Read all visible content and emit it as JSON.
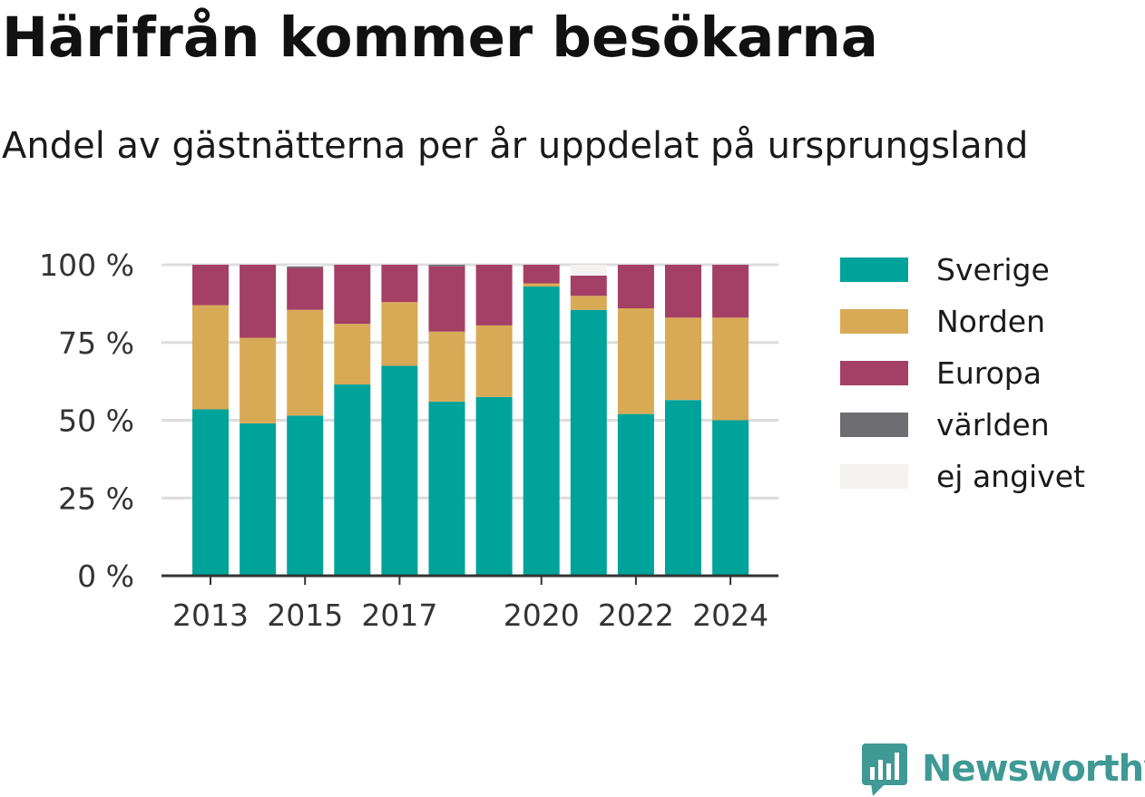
{
  "header": {
    "title": "Härifrån kommer besökarna",
    "subtitle": "Andel av gästnätterna per år uppdelat på ursprungsland"
  },
  "brand": {
    "name": "Newsworthy",
    "logo_icon": "bar-chart-speech-bubble-icon",
    "color": "#3f9994"
  },
  "chart_data": {
    "type": "bar",
    "stacked": true,
    "categories": [
      "2013",
      "2014",
      "2015",
      "2016",
      "2017",
      "2018",
      "2019",
      "2020",
      "2021",
      "2022",
      "2023",
      "2024"
    ],
    "x_tick_labels": [
      "2013",
      "",
      "2015",
      "",
      "2017",
      "",
      "",
      "2020",
      "",
      "2022",
      "",
      "2024"
    ],
    "ylim": [
      0,
      100
    ],
    "y_ticks": [
      0,
      25,
      50,
      75,
      100
    ],
    "y_tick_labels": [
      "0 %",
      "25 %",
      "50 %",
      "75 %",
      "100 %"
    ],
    "grid": "horizontal",
    "legend_position": "right",
    "series": [
      {
        "name": "Sverige",
        "color": "#00a39a",
        "values": [
          53.5,
          49,
          51.5,
          61.5,
          67.5,
          56,
          57.5,
          93,
          85.5,
          52,
          56.5,
          50
        ]
      },
      {
        "name": "Norden",
        "color": "#d9aa56",
        "values": [
          33.5,
          27.5,
          34,
          19.5,
          20.5,
          22.5,
          23,
          1,
          4.5,
          34,
          26.5,
          33
        ]
      },
      {
        "name": "Europa",
        "color": "#a44065",
        "values": [
          13,
          23.5,
          13.5,
          19,
          12,
          21,
          19.5,
          6,
          6.5,
          14,
          17,
          17
        ]
      },
      {
        "name": "världen",
        "color": "#6d6d72",
        "values": [
          0,
          0,
          0.5,
          0,
          0,
          0.5,
          0,
          0,
          0,
          0,
          0,
          0
        ]
      },
      {
        "name": "ej angivet",
        "color": "#f4f3f1",
        "values": [
          0,
          0,
          0.5,
          0,
          0,
          0,
          0,
          0,
          3.5,
          0,
          0,
          0
        ]
      }
    ]
  }
}
